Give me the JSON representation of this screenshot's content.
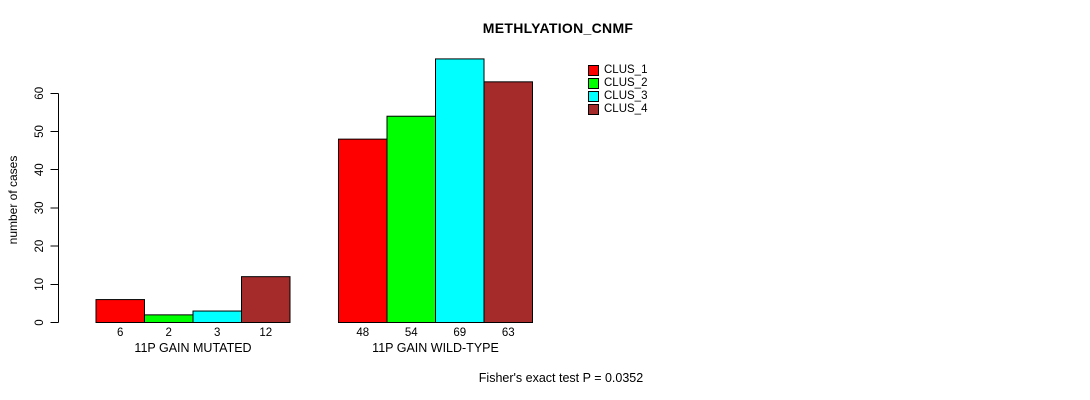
{
  "chart_data": {
    "type": "bar",
    "title": "METHLYATION_CNMF",
    "ylabel": "number of cases",
    "xlabel": "",
    "ylim": [
      0,
      69
    ],
    "yticks": [
      0,
      10,
      20,
      30,
      40,
      50,
      60
    ],
    "grid": false,
    "legend_position": "top-right-outside-plot",
    "show_value_labels": true,
    "categories": [
      "11P GAIN MUTATED",
      "11P GAIN WILD-TYPE"
    ],
    "series": [
      {
        "name": "CLUS_1",
        "color": "#FF0000",
        "values": [
          6,
          48
        ]
      },
      {
        "name": "CLUS_2",
        "color": "#00FF00",
        "values": [
          2,
          54
        ]
      },
      {
        "name": "CLUS_3",
        "color": "#00FFFF",
        "values": [
          3,
          69
        ]
      },
      {
        "name": "CLUS_4",
        "color": "#A52A2A",
        "values": [
          12,
          63
        ]
      }
    ],
    "annotation": "Fisher's exact test P = 0.0352"
  },
  "colors": {
    "background": "#FFFFFF",
    "axis": "#000000",
    "bar_border": "#000000",
    "text": "#000000"
  }
}
